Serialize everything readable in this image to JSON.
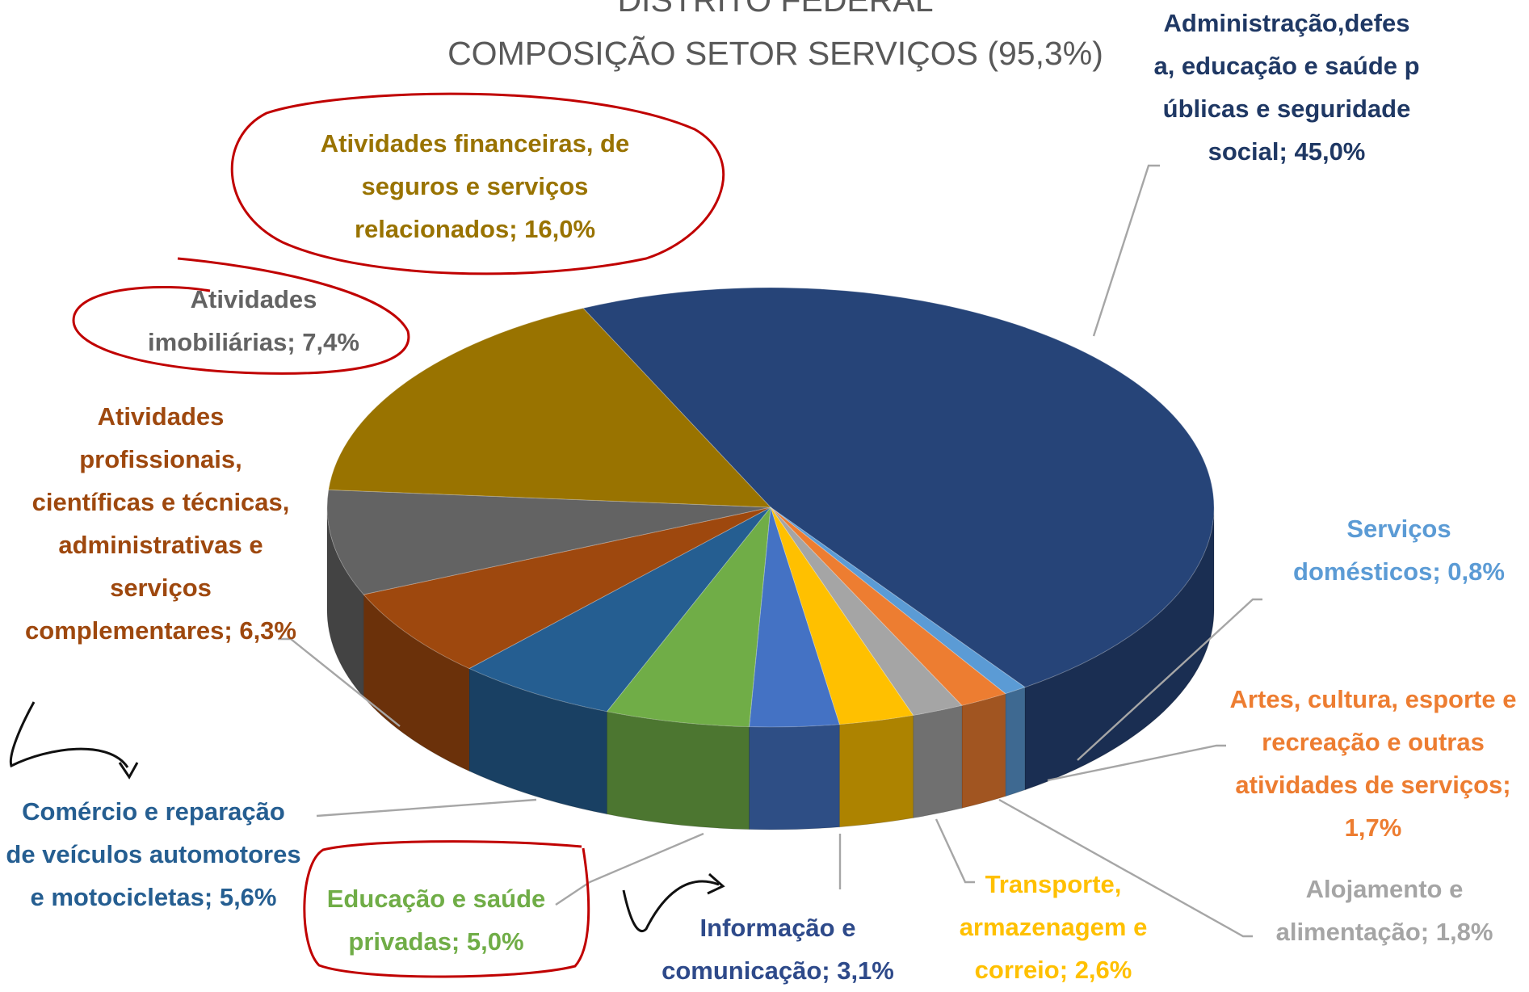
{
  "chart_data": {
    "type": "pie",
    "title": "DISTRITO FEDERAL",
    "subtitle": "COMPOSIÇÃO SETOR SERVIÇOS (95,3%)",
    "categories": [
      "Administração,defesa, educação e saúde públicas e seguridade social;",
      "Serviços domésticos;",
      "Artes, cultura, esporte e recreação e outras atividades de serviços;",
      "Alojamento e alimentação;",
      "Transporte, armazenagem e correio;",
      "Informação e comunicação;",
      "Educação e saúde privadas;",
      "Comércio e reparação de veículos automotores e motocicletas;",
      "Atividades profissionais, científicas e técnicas, administrativas e serviços complementares;",
      "Atividades imobiliárias;",
      "Atividades financeiras, de seguros e serviços relacionados;"
    ],
    "values": [
      45.0,
      0.8,
      1.7,
      1.8,
      2.6,
      3.1,
      5.0,
      5.6,
      6.3,
      7.4,
      16.0
    ],
    "value_labels": [
      "45,0%",
      "0,8%",
      "1,7%",
      "1,8%",
      "2,6%",
      "3,1%",
      "5,0%",
      "5,6%",
      "6,3%",
      "7,4%",
      "16,0%"
    ],
    "colors": [
      "#264478",
      "#5b9bd5",
      "#ed7d31",
      "#a5a5a5",
      "#ffc000",
      "#4472c4",
      "#70ad47",
      "#255e91",
      "#9e480e",
      "#636363",
      "#997300"
    ]
  }
}
